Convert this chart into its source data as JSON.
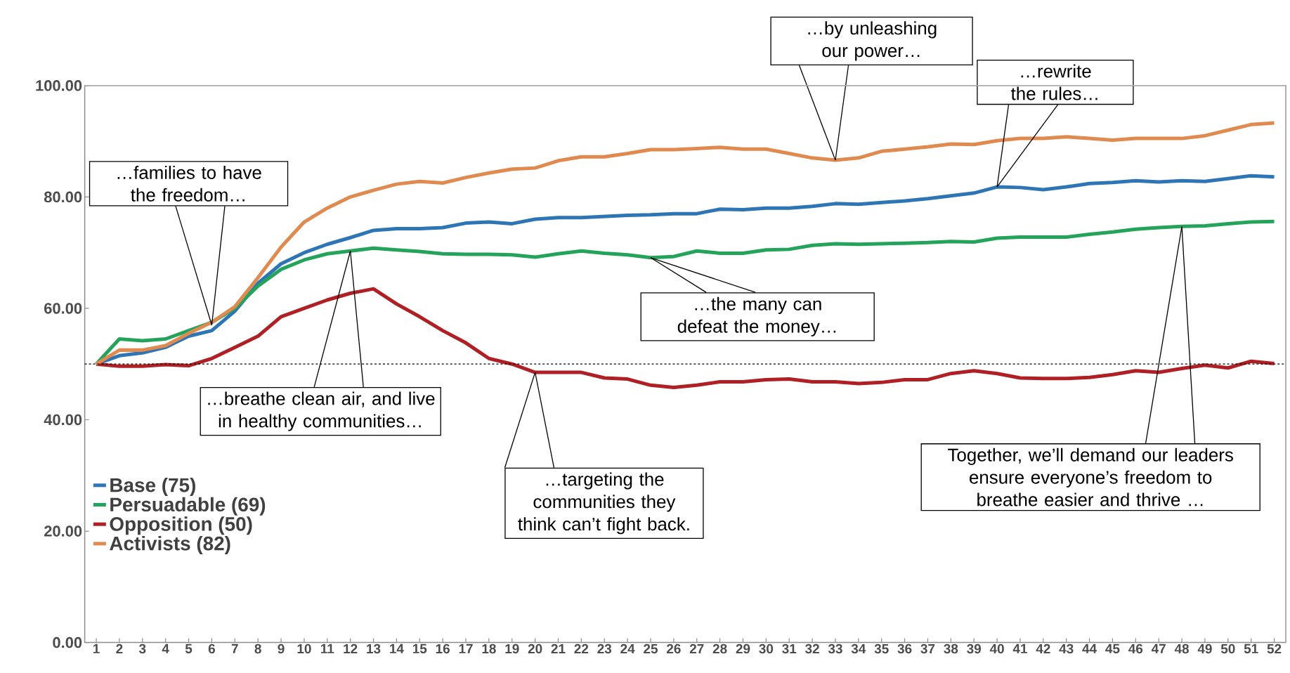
{
  "chart_data": {
    "type": "line",
    "x": [
      1,
      2,
      3,
      4,
      5,
      6,
      7,
      8,
      9,
      10,
      11,
      12,
      13,
      14,
      15,
      16,
      17,
      18,
      19,
      20,
      21,
      22,
      23,
      24,
      25,
      26,
      27,
      28,
      29,
      30,
      31,
      32,
      33,
      34,
      35,
      36,
      37,
      38,
      39,
      40,
      41,
      42,
      43,
      44,
      45,
      46,
      47,
      48,
      49,
      50,
      51,
      52
    ],
    "xlim": [
      0.5,
      52.5
    ],
    "xticks": [
      1,
      2,
      3,
      4,
      5,
      6,
      7,
      8,
      9,
      10,
      11,
      12,
      13,
      14,
      15,
      16,
      17,
      18,
      19,
      20,
      21,
      22,
      23,
      24,
      25,
      26,
      27,
      28,
      29,
      30,
      31,
      32,
      33,
      34,
      35,
      36,
      37,
      38,
      39,
      40,
      41,
      42,
      43,
      44,
      45,
      46,
      47,
      48,
      49,
      50,
      51,
      52
    ],
    "ylim": [
      0,
      100
    ],
    "yticks": [
      {
        "value": 0,
        "label": "0.00"
      },
      {
        "value": 20,
        "label": "20.00"
      },
      {
        "value": 40,
        "label": "40.00"
      },
      {
        "value": 60,
        "label": "60.00"
      },
      {
        "value": 80,
        "label": "80.00"
      },
      {
        "value": 100,
        "label": "100.00"
      }
    ],
    "series": [
      {
        "name": "Base (75)",
        "color": "#2e75b6",
        "values": [
          50,
          51.5,
          52,
          53,
          55,
          56,
          59.5,
          64.5,
          68,
          70,
          71.5,
          72.7,
          74,
          74.3,
          74.3,
          74.5,
          75.3,
          75.5,
          75.2,
          76,
          76.3,
          76.3,
          76.5,
          76.7,
          76.8,
          77,
          77,
          77.8,
          77.7,
          78,
          78,
          78.3,
          78.8,
          78.7,
          79,
          79.3,
          79.7,
          80.2,
          80.7,
          81.8,
          81.7,
          81.3,
          81.8,
          82.4,
          82.6,
          82.9,
          82.7,
          82.9,
          82.8,
          83.3,
          83.8,
          83.6
        ]
      },
      {
        "name": "Persuadable (69)",
        "color": "#23a45a",
        "values": [
          50,
          54.5,
          54.2,
          54.5,
          56,
          57.5,
          60,
          64,
          67,
          68.7,
          69.8,
          70.3,
          70.8,
          70.5,
          70.2,
          69.8,
          69.7,
          69.7,
          69.6,
          69.2,
          69.8,
          70.3,
          69.9,
          69.6,
          69.1,
          69.3,
          70.3,
          69.9,
          69.9,
          70.5,
          70.6,
          71.3,
          71.6,
          71.5,
          71.6,
          71.7,
          71.8,
          72,
          71.9,
          72.6,
          72.8,
          72.8,
          72.8,
          73.3,
          73.7,
          74.2,
          74.5,
          74.7,
          74.8,
          75.2,
          75.5,
          75.6
        ]
      },
      {
        "name": "Opposition (50)",
        "color": "#b01f24",
        "values": [
          50,
          49.6,
          49.6,
          49.9,
          49.7,
          51,
          53,
          55,
          58.5,
          60,
          61.5,
          62.7,
          63.5,
          60.8,
          58.5,
          56,
          53.8,
          51,
          50,
          48.5,
          48.5,
          48.5,
          47.5,
          47.3,
          46.2,
          45.8,
          46.2,
          46.8,
          46.8,
          47.2,
          47.3,
          46.8,
          46.8,
          46.5,
          46.7,
          47.2,
          47.2,
          48.3,
          48.8,
          48.3,
          47.5,
          47.4,
          47.4,
          47.6,
          48.1,
          48.8,
          48.5,
          49.2,
          49.8,
          49.3,
          50.5,
          50.1
        ]
      },
      {
        "name": "Activists (82)",
        "color": "#e08a50",
        "values": [
          50,
          52.5,
          52.5,
          53.3,
          55.5,
          57.5,
          60.3,
          65.5,
          71,
          75.5,
          78,
          80,
          81.2,
          82.3,
          82.8,
          82.5,
          83.5,
          84.3,
          85,
          85.2,
          86.5,
          87.2,
          87.2,
          87.8,
          88.5,
          88.5,
          88.7,
          88.9,
          88.6,
          88.6,
          87.8,
          87,
          86.6,
          87,
          88.2,
          88.6,
          89,
          89.5,
          89.4,
          90.1,
          90.5,
          90.5,
          90.8,
          90.5,
          90.2,
          90.5,
          90.5,
          90.5,
          91,
          92,
          93,
          93.3
        ]
      }
    ],
    "ref_lines": [
      {
        "axis": "y",
        "value": 50,
        "color": "#000000",
        "line_style": "dashed"
      }
    ],
    "annotations": [
      {
        "text": "…families to have the freedom…",
        "x": 6,
        "y": 57
      },
      {
        "text": "…breathe clean air, and live in healthy communities…",
        "x": 12,
        "y": 70.3
      },
      {
        "text": "…targeting the communities they think can’t fight back.",
        "x": 20,
        "y": 48.5
      },
      {
        "text": "…the many can defeat the money…",
        "x": 25,
        "y": 69.1
      },
      {
        "text": "…by unleashing our power…",
        "x": 33,
        "y": 86.6
      },
      {
        "text": "…rewrite the rules…",
        "x": 40,
        "y": 81.8
      },
      {
        "text": "Together, we’ll demand our leaders ensure everyone’s freedom to breathe easier and thrive …",
        "x": 48,
        "y": 74.7
      }
    ],
    "legend": "bottom left",
    "marker": "none",
    "line_style": "solid",
    "grid": false
  }
}
